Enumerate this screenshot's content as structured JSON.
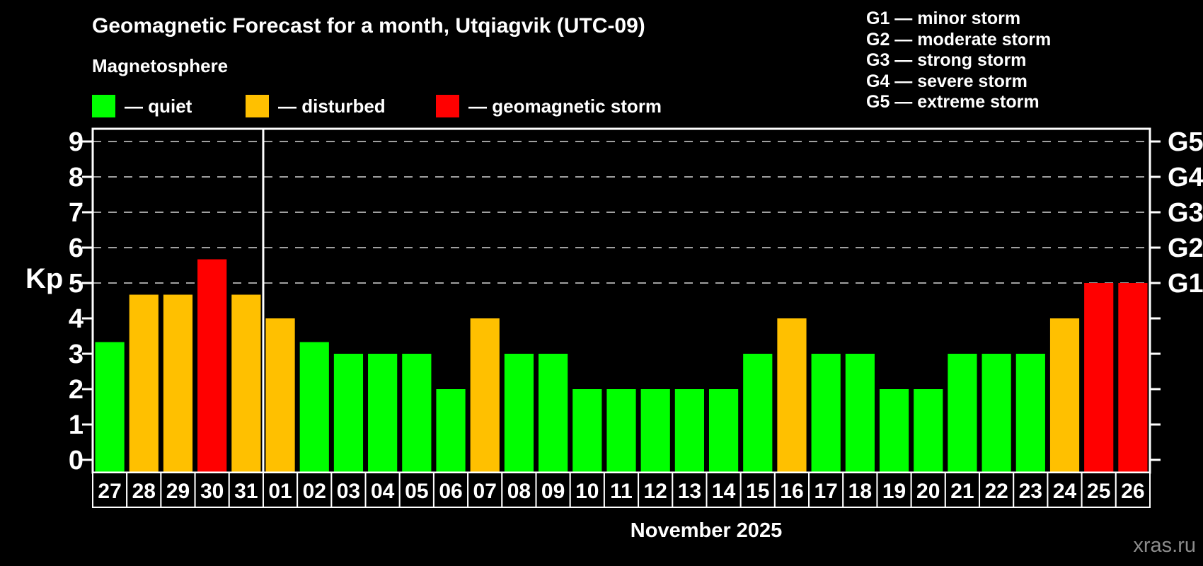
{
  "header": {
    "title": "Geomagnetic Forecast for a month, Utqiagvik (UTC-09)",
    "subtitle": "Magnetosphere"
  },
  "legend": {
    "items": [
      {
        "key": "quiet",
        "label": "— quiet",
        "color": "#00ff00"
      },
      {
        "key": "disturbed",
        "label": "— disturbed",
        "color": "#ffc000"
      },
      {
        "key": "storm",
        "label": "— geomagnetic storm",
        "color": "#ff0000"
      }
    ]
  },
  "storm_scale_legend": {
    "items": [
      "G1 — minor storm",
      "G2 — moderate storm",
      "G3 — strong storm",
      "G4 — severe storm",
      "G5 — extreme storm"
    ]
  },
  "footer": {
    "xaxis_title": "November 2025",
    "watermark": "xras.ru"
  },
  "chart_data": {
    "type": "bar",
    "title": "Geomagnetic Forecast for a month, Utqiagvik (UTC-09)",
    "ylabel": "Kp",
    "xlabel": "November 2025",
    "ylim": [
      0,
      9
    ],
    "yticks": [
      0,
      1,
      2,
      3,
      4,
      5,
      6,
      7,
      8,
      9
    ],
    "gridlines_kp": [
      5,
      6,
      7,
      8,
      9
    ],
    "grid": "dashed, only at storm levels G1-G5",
    "right_axis_labels": [
      {
        "kp": 5,
        "label": "G1"
      },
      {
        "kp": 6,
        "label": "G2"
      },
      {
        "kp": 7,
        "label": "G3"
      },
      {
        "kp": 8,
        "label": "G4"
      },
      {
        "kp": 9,
        "label": "G5"
      }
    ],
    "categories": [
      "27",
      "28",
      "29",
      "30",
      "31",
      "01",
      "02",
      "03",
      "04",
      "05",
      "06",
      "07",
      "08",
      "09",
      "10",
      "11",
      "12",
      "13",
      "14",
      "15",
      "16",
      "17",
      "18",
      "19",
      "20",
      "21",
      "22",
      "23",
      "24",
      "25",
      "26"
    ],
    "values": [
      3.33,
      4.67,
      4.67,
      5.67,
      4.67,
      4.0,
      3.33,
      3.0,
      3.0,
      3.0,
      2.0,
      4.0,
      3.0,
      3.0,
      2.0,
      2.0,
      2.0,
      2.0,
      2.0,
      3.0,
      4.0,
      3.0,
      3.0,
      2.0,
      2.0,
      3.0,
      3.0,
      3.0,
      4.0,
      5.0,
      5.0
    ],
    "month_separator_after_index": 5,
    "color_rules": [
      {
        "status": "quiet",
        "kp_below": 4,
        "color": "#00ff00"
      },
      {
        "status": "disturbed",
        "kp_below": 5,
        "color": "#ffc000"
      },
      {
        "status": "storm",
        "kp_below": 99,
        "color": "#ff0000"
      }
    ]
  }
}
